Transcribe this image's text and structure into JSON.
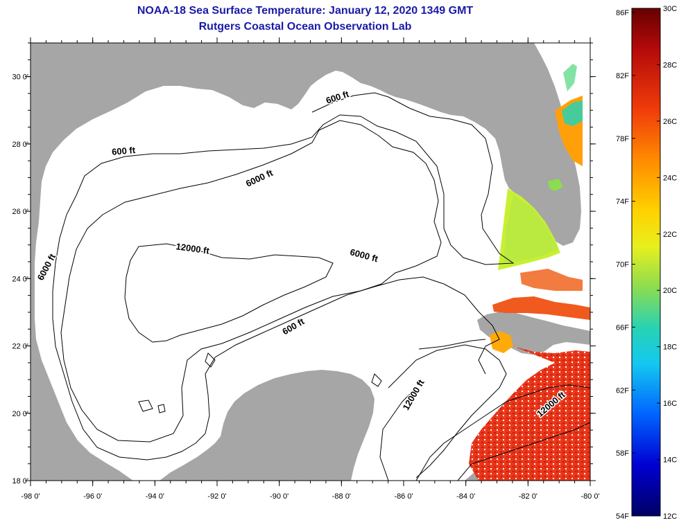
{
  "title": {
    "line1": "NOAA-18 Sea Surface Temperature:  January 12, 2020 1349 GMT",
    "line2": "Rutgers Coastal Ocean Observation Lab"
  },
  "map": {
    "lon_range": [
      -98,
      -80
    ],
    "lat_range": [
      18,
      31
    ],
    "lon_ticks": [
      {
        "value": -98,
        "label": "-98 0'"
      },
      {
        "value": -96,
        "label": "-96 0'"
      },
      {
        "value": -94,
        "label": "-94 0'"
      },
      {
        "value": -92,
        "label": "-92 0'"
      },
      {
        "value": -90,
        "label": "-90 0'"
      },
      {
        "value": -88,
        "label": "-88 0'"
      },
      {
        "value": -86,
        "label": "-86 0'"
      },
      {
        "value": -84,
        "label": "-84 0'"
      },
      {
        "value": -82,
        "label": "-82 0'"
      },
      {
        "value": -80,
        "label": "-80 0'"
      }
    ],
    "lat_ticks": [
      {
        "value": 30,
        "label": "30 0'"
      },
      {
        "value": 28,
        "label": "28 0'"
      },
      {
        "value": 26,
        "label": "26 0'"
      },
      {
        "value": 24,
        "label": "24 0'"
      },
      {
        "value": 22,
        "label": "22 0'"
      },
      {
        "value": 20,
        "label": "20 0'"
      },
      {
        "value": 18,
        "label": "18 0'"
      }
    ],
    "contour_labels": [
      {
        "text": "600 ft",
        "lon": -88.1,
        "lat": 29.3,
        "angle": -18
      },
      {
        "text": "600 ft",
        "lon": -95.0,
        "lat": 27.7,
        "angle": -5
      },
      {
        "text": "6000 ft",
        "lon": -90.6,
        "lat": 26.9,
        "angle": -25
      },
      {
        "text": "12000 ft",
        "lon": -92.8,
        "lat": 24.8,
        "angle": 8
      },
      {
        "text": "6000 ft",
        "lon": -87.3,
        "lat": 24.6,
        "angle": 15
      },
      {
        "text": "6000 ft",
        "lon": -97.4,
        "lat": 24.3,
        "angle": -62
      },
      {
        "text": "600 ft",
        "lon": -89.5,
        "lat": 22.5,
        "angle": -30
      },
      {
        "text": "12000 ft",
        "lon": -85.6,
        "lat": 20.5,
        "angle": -60
      },
      {
        "text": "12000 ft",
        "lon": -81.2,
        "lat": 20.2,
        "angle": -40
      }
    ]
  },
  "colorbar": {
    "f_labels": [
      "86F",
      "82F",
      "78F",
      "74F",
      "70F",
      "66F",
      "62F",
      "58F",
      "54F"
    ],
    "c_labels": [
      "30C",
      "28C",
      "26C",
      "24C",
      "22C",
      "20C",
      "18C",
      "16C",
      "14C",
      "12C"
    ],
    "colors": [
      "#6b0000",
      "#c81414",
      "#f03c0a",
      "#ff8c00",
      "#ffd200",
      "#e6f01e",
      "#8cdc50",
      "#28d2b4",
      "#14aaf0",
      "#0050ff",
      "#0000c8",
      "#000064"
    ]
  },
  "style": {
    "land_color": "#a6a6a6",
    "water_color": "#ffffff",
    "title_color": "#1a1aa6"
  }
}
